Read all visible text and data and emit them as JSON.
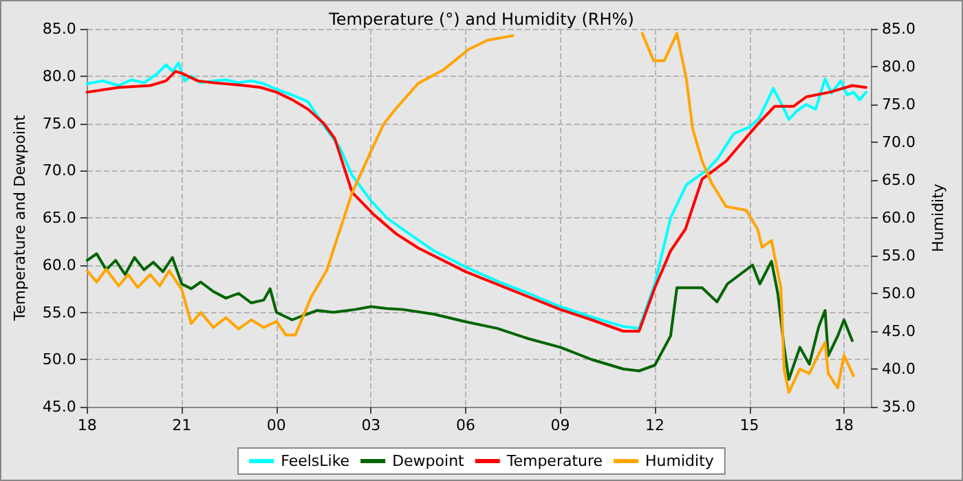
{
  "chart_data": {
    "type": "line",
    "title": "Temperature (°) and Humidity (RH%)",
    "ylabel": "Temperature and Dewpoint",
    "y2label": "Humidity",
    "xlim": [
      18,
      42.85
    ],
    "xticks": [
      {
        "value": 18,
        "label": "18"
      },
      {
        "value": 21,
        "label": "21"
      },
      {
        "value": 24,
        "label": "00"
      },
      {
        "value": 27,
        "label": "03"
      },
      {
        "value": 30,
        "label": "06"
      },
      {
        "value": 33,
        "label": "09"
      },
      {
        "value": 36,
        "label": "12"
      },
      {
        "value": 39,
        "label": "15"
      },
      {
        "value": 42,
        "label": "18"
      }
    ],
    "ylim": [
      45,
      85
    ],
    "yticks": [
      {
        "value": 45,
        "label": "45.0"
      },
      {
        "value": 50,
        "label": "50.0"
      },
      {
        "value": 55,
        "label": "55.0"
      },
      {
        "value": 60,
        "label": "60.0"
      },
      {
        "value": 65,
        "label": "65.0"
      },
      {
        "value": 70,
        "label": "70.0"
      },
      {
        "value": 75,
        "label": "75.0"
      },
      {
        "value": 80,
        "label": "80.0"
      },
      {
        "value": 85,
        "label": "85.0"
      }
    ],
    "y2lim": [
      35,
      85
    ],
    "y2ticks": [
      {
        "value": 35,
        "label": "35.0"
      },
      {
        "value": 40,
        "label": "40.0"
      },
      {
        "value": 45,
        "label": "45.0"
      },
      {
        "value": 50,
        "label": "50.0"
      },
      {
        "value": 55,
        "label": "55.0"
      },
      {
        "value": 60,
        "label": "60.0"
      },
      {
        "value": 65,
        "label": "65.0"
      },
      {
        "value": 70,
        "label": "70.0"
      },
      {
        "value": 75,
        "label": "75.0"
      },
      {
        "value": 80,
        "label": "80.0"
      },
      {
        "value": 85,
        "label": "85.0"
      }
    ],
    "grid": true,
    "legend": "bottom",
    "series": [
      {
        "name": "FeelsLike",
        "color": "#00ffff",
        "x": [
          18,
          18.5,
          19,
          19.4,
          19.8,
          20.2,
          20.5,
          20.7,
          20.9,
          21,
          21.1,
          21.3,
          21.6,
          22,
          22.4,
          22.8,
          23.2,
          23.6,
          24,
          24.5,
          25,
          25.54,
          26,
          26.4,
          27,
          27.5,
          28,
          29,
          30,
          31,
          32,
          33,
          34,
          35,
          35.5,
          36,
          36.5,
          37,
          37.67,
          38,
          38.5,
          39,
          39.3,
          39.76,
          40.1,
          40.25,
          40.5,
          40.8,
          41.1,
          41.4,
          41.6,
          41.9,
          42.1,
          42.3,
          42.5,
          42.7
        ],
        "values": [
          79.2,
          79.5,
          79,
          79.6,
          79.3,
          80.2,
          81.2,
          80.5,
          81.4,
          80.3,
          79.5,
          80,
          79.3,
          79.5,
          79.6,
          79.3,
          79.5,
          79.2,
          78.6,
          78,
          77.3,
          74.6,
          72.5,
          69.5,
          66.8,
          65,
          63.8,
          61.5,
          59.8,
          58.3,
          57,
          55.6,
          54.5,
          53.5,
          53.3,
          58,
          65,
          68.5,
          70.1,
          71.3,
          73.9,
          74.6,
          75.5,
          78.7,
          76.5,
          75.4,
          76.3,
          77,
          76.5,
          79.7,
          78.2,
          79.5,
          78,
          78.3,
          77.5,
          78.3
        ]
      },
      {
        "name": "Dewpoint",
        "color": "#006400",
        "x": [
          18,
          18.3,
          18.6,
          18.9,
          19.2,
          19.5,
          19.8,
          20.1,
          20.4,
          20.7,
          21,
          21.3,
          21.6,
          22,
          22.4,
          22.8,
          23.2,
          23.6,
          23.8,
          24,
          24.5,
          24.8,
          25.3,
          25.8,
          26.5,
          27,
          27.5,
          28,
          29,
          30,
          31,
          32,
          33,
          34,
          35,
          35.5,
          36,
          36.5,
          36.7,
          37.5,
          37.97,
          38.3,
          38.7,
          39.1,
          39.33,
          39.7,
          39.9,
          40.1,
          40.25,
          40.6,
          40.9,
          41.2,
          41.4,
          41.5,
          41.8,
          42,
          42.26
        ],
        "values": [
          60.5,
          61.2,
          59.5,
          60.5,
          59,
          60.8,
          59.5,
          60.3,
          59.3,
          60.8,
          58,
          57.5,
          58.2,
          57.2,
          56.5,
          57,
          56,
          56.3,
          57.5,
          55,
          54.2,
          54.6,
          55.2,
          55,
          55.3,
          55.6,
          55.4,
          55.3,
          54.8,
          54,
          53.3,
          52.2,
          51.3,
          50,
          49,
          48.8,
          49.4,
          52.5,
          57.6,
          57.6,
          56.1,
          58,
          59,
          60,
          58,
          60.4,
          57,
          51.3,
          47.9,
          51.3,
          49.5,
          53.5,
          55.2,
          50.4,
          52.5,
          54.2,
          52
        ]
      },
      {
        "name": "Temperature",
        "color": "#ff0000",
        "x": [
          18,
          19,
          20,
          20.5,
          20.8,
          21,
          21.5,
          22,
          23,
          23.5,
          24,
          24.5,
          25,
          25.5,
          25.85,
          26.4,
          27.1,
          27.8,
          28.5,
          30,
          31.5,
          33,
          34,
          35,
          35.5,
          36,
          36.5,
          36.97,
          37.5,
          38.26,
          39.26,
          39.8,
          40.4,
          40.8,
          41.55,
          42.26,
          42.7
        ],
        "values": [
          78.3,
          78.8,
          79,
          79.5,
          80.5,
          80.3,
          79.5,
          79.3,
          79,
          78.8,
          78.3,
          77.5,
          76.5,
          75,
          73.4,
          67.7,
          65.3,
          63.3,
          61.8,
          59.3,
          57.3,
          55.3,
          54.2,
          53,
          53,
          57.6,
          61.5,
          63.8,
          69.1,
          71,
          74.9,
          76.8,
          76.8,
          77.8,
          78.3,
          79,
          78.8
        ]
      },
      {
        "name": "Humidity",
        "color": "#ffa500",
        "axis": "y2",
        "x": [
          18,
          18.3,
          18.6,
          19,
          19.3,
          19.6,
          20,
          20.3,
          20.6,
          21,
          21.3,
          21.6,
          22,
          22.4,
          22.8,
          23.2,
          23.6,
          24,
          24.3,
          24.6,
          25.1,
          25.6,
          26.1,
          26.4,
          27,
          27.4,
          27.8,
          28.5,
          29.3,
          30.1,
          30.7,
          31.5,
          33.5,
          35.6,
          35.96,
          36.3,
          36.5,
          36.7,
          37,
          37.2,
          37.5,
          37.8,
          38.26,
          38.9,
          39.26,
          39.4,
          39.7,
          40,
          40.1,
          40.25,
          40.6,
          40.9,
          41.2,
          41.4,
          41.5,
          41.8,
          42,
          42.3
        ],
        "values": [
          53,
          51.5,
          53.2,
          51,
          52.5,
          50.8,
          52.5,
          51,
          53,
          50.5,
          46,
          47.5,
          45.5,
          46.8,
          45.3,
          46.5,
          45.5,
          46.3,
          44.5,
          44.5,
          49.5,
          53.1,
          59.5,
          63.3,
          68.8,
          72.4,
          74.5,
          77.8,
          79.6,
          82.3,
          83.5,
          84.1,
          null,
          84.4,
          80.8,
          80.8,
          82.6,
          84.4,
          78.4,
          71.8,
          67.5,
          64.6,
          61.5,
          61,
          58.5,
          56.1,
          57,
          50.7,
          39.9,
          36.9,
          40,
          39.4,
          42,
          43.5,
          39.4,
          37.5,
          41.8,
          39.1
        ]
      }
    ]
  }
}
